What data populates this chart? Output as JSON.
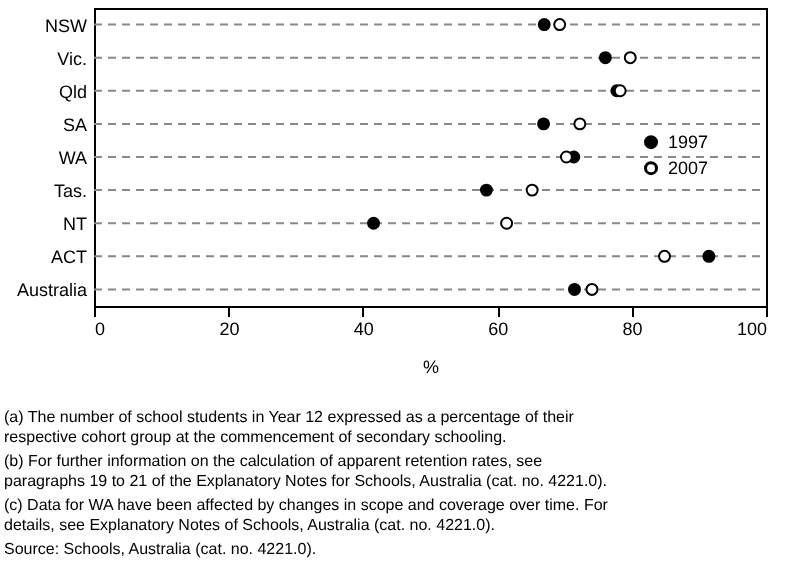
{
  "chart_data": {
    "type": "scatter",
    "orientation": "horizontal",
    "xlabel": "%",
    "categories": [
      "NSW",
      "Vic.",
      "Qld",
      "SA",
      "WA",
      "Tas.",
      "NT",
      "ACT",
      "Australia"
    ],
    "series": [
      {
        "name": "1997",
        "color": "#000000",
        "values": [
          67.0,
          76.1,
          77.8,
          66.9,
          71.4,
          58.4,
          41.6,
          91.5,
          71.5
        ]
      },
      {
        "name": "2007",
        "color": "#000000",
        "values": [
          69.3,
          79.8,
          78.3,
          72.3,
          70.3,
          65.2,
          61.4,
          84.9,
          74.1
        ]
      }
    ],
    "xlim": [
      0,
      100
    ],
    "xticks": [
      0,
      20,
      40,
      60,
      80,
      100
    ],
    "grid": "y",
    "line_style": "dashed",
    "marker": "circle",
    "legend": "right",
    "annotations": [
      "(a) The number of school students in Year 12 expressed as a percentage of their respective cohort group at the commencement of secondary schooling.",
      "(b) For further information on the calculation of apparent retention rates, see paragraphs 19 to 21 of the Explanatory Notes for Schools, Australia (cat. no. 4221.0).",
      "(c) Data for WA have been affected by changes in scope and coverage over time. For details, see Explanatory Notes of Schools, Australia (cat. no. 4221.0).",
      "Source: Schools, Australia (cat. no. 4221.0)."
    ]
  }
}
